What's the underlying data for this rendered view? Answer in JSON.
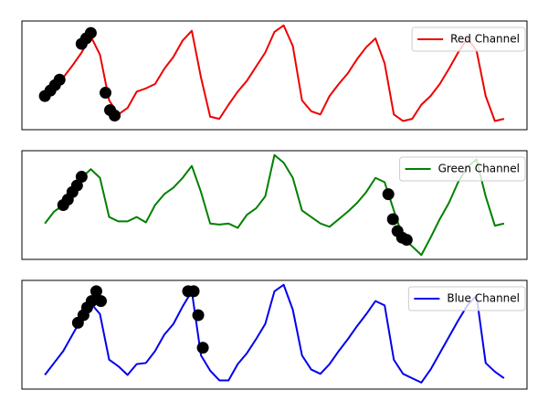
{
  "chart_data": [
    {
      "type": "line",
      "legend": "upper right",
      "xlim": [
        -2.5,
        52.5
      ],
      "ylim": [
        0,
        100
      ],
      "x": [
        0,
        1,
        2,
        3,
        4,
        5,
        6,
        7,
        8,
        9,
        10,
        11,
        12,
        13,
        14,
        15,
        16,
        17,
        18,
        19,
        20,
        21,
        22,
        23,
        24,
        25,
        26,
        27,
        28,
        29,
        30,
        31,
        32,
        33,
        34,
        35,
        36,
        37,
        38,
        39,
        40,
        41,
        42,
        43,
        44,
        45,
        46,
        47,
        48,
        49,
        50
      ],
      "series": [
        {
          "name": "Red Channel",
          "color": "#ee0000",
          "values": [
            31,
            39,
            48,
            59,
            71,
            86,
            69,
            27,
            14,
            20,
            35,
            38,
            42,
            56,
            67,
            82,
            91,
            48,
            12,
            10,
            23,
            35,
            45,
            58,
            71,
            90,
            96,
            77,
            27,
            17,
            14,
            31,
            42,
            52,
            65,
            76,
            84,
            61,
            14,
            8,
            10,
            23,
            31,
            42,
            56,
            71,
            84,
            73,
            31,
            8,
            10
          ]
        }
      ],
      "markers": {
        "color": "#000000",
        "x": [
          0,
          0.6,
          1.1,
          1.6,
          4,
          4.5,
          5,
          6.6,
          7.1,
          7.6
        ],
        "y": [
          31,
          36,
          41,
          46,
          79,
          84,
          89,
          34,
          18,
          13
        ]
      }
    },
    {
      "type": "line",
      "legend": "upper right",
      "xlim": [
        -2.5,
        52.5
      ],
      "ylim": [
        0,
        100
      ],
      "x": [
        0,
        1,
        2,
        3,
        4,
        5,
        6,
        7,
        8,
        9,
        10,
        11,
        12,
        13,
        14,
        15,
        16,
        17,
        18,
        19,
        20,
        21,
        22,
        23,
        24,
        25,
        26,
        27,
        28,
        29,
        30,
        31,
        32,
        33,
        34,
        35,
        36,
        37,
        38,
        39,
        40,
        41,
        42,
        43,
        44,
        45,
        46,
        47,
        48,
        49,
        50
      ],
      "series": [
        {
          "name": "Green Channel",
          "color": "#008000",
          "values": [
            33,
            44,
            50,
            58,
            75,
            83,
            75,
            39,
            35,
            35,
            39,
            34,
            50,
            60,
            66,
            75,
            86,
            62,
            33,
            32,
            33,
            29,
            41,
            47,
            58,
            96,
            89,
            75,
            45,
            39,
            33,
            30,
            37,
            44,
            52,
            62,
            75,
            71,
            45,
            20,
            12,
            4,
            20,
            37,
            52,
            71,
            85,
            92,
            58,
            31,
            33
          ]
        }
      ],
      "markers": {
        "color": "#000000",
        "x": [
          2,
          2.5,
          3,
          3.5,
          4,
          37.4,
          37.9,
          38.4,
          38.9,
          39.4
        ],
        "y": [
          50,
          55,
          62,
          68,
          76,
          60,
          37,
          26,
          20,
          18
        ]
      }
    },
    {
      "type": "line",
      "legend": "upper right",
      "xlim": [
        -2.5,
        52.5
      ],
      "ylim": [
        0,
        100
      ],
      "x": [
        0,
        1,
        2,
        3,
        4,
        5,
        6,
        7,
        8,
        9,
        10,
        11,
        12,
        13,
        14,
        15,
        16,
        17,
        18,
        19,
        20,
        21,
        22,
        23,
        24,
        25,
        26,
        27,
        28,
        29,
        30,
        31,
        32,
        33,
        34,
        35,
        36,
        37,
        38,
        39,
        40,
        41,
        42,
        43,
        44,
        45,
        46,
        47,
        48,
        49,
        50
      ],
      "series": [
        {
          "name": "Blue Channel",
          "color": "#0000ee",
          "values": [
            13,
            24,
            35,
            50,
            65,
            79,
            69,
            27,
            21,
            13,
            23,
            24,
            35,
            50,
            60,
            76,
            90,
            31,
            17,
            8,
            8,
            23,
            33,
            46,
            60,
            90,
            96,
            73,
            31,
            18,
            14,
            23,
            35,
            46,
            58,
            69,
            81,
            77,
            27,
            14,
            10,
            6,
            18,
            33,
            48,
            63,
            77,
            86,
            24,
            16,
            10
          ]
        }
      ],
      "markers": {
        "color": "#000000",
        "x": [
          3.6,
          4.2,
          4.6,
          5.1,
          5.6,
          6.1,
          15.6,
          16.2,
          16.7,
          17.2
        ],
        "y": [
          61,
          68,
          75,
          81,
          90,
          81,
          90,
          90,
          68,
          38
        ]
      }
    }
  ]
}
